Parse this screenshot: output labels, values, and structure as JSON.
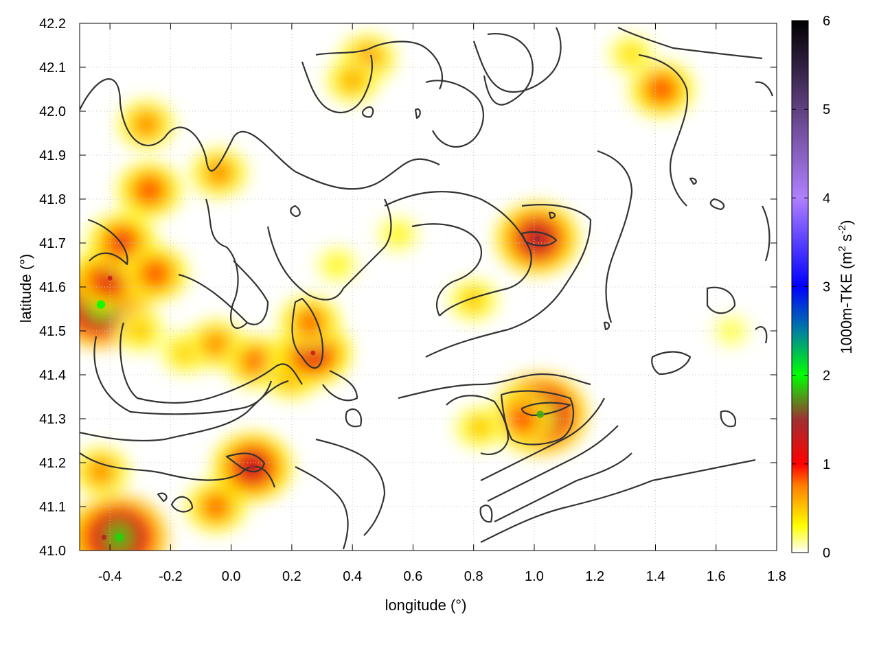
{
  "chart_data": {
    "type": "heatmap",
    "title": "",
    "xlabel": "longitude (°)",
    "ylabel": "latitude (°)",
    "xlim": [
      -0.5,
      1.8
    ],
    "ylim": [
      41.0,
      42.2
    ],
    "xticks": [
      "-0.4",
      "-0.2",
      "0.0",
      "0.2",
      "0.4",
      "0.6",
      "0.8",
      "1.0",
      "1.2",
      "1.4",
      "1.6",
      "1.8"
    ],
    "yticks": [
      "41.0",
      "41.1",
      "41.2",
      "41.3",
      "41.4",
      "41.5",
      "41.6",
      "41.7",
      "41.8",
      "41.9",
      "42.0",
      "42.1",
      "42.2"
    ],
    "grid": true,
    "colorbar": {
      "label": "1000m-TKE (m² s⁻²)",
      "label_main": "1000m-TKE (m",
      "label_sup1": "2",
      "label_mid": " s",
      "label_sup2": "-2",
      "label_end": ")",
      "range": [
        0,
        6
      ],
      "ticks": [
        "0",
        "1",
        "2",
        "3",
        "4",
        "5",
        "6"
      ],
      "stops": [
        {
          "value": 0.0,
          "color": "#ffffff"
        },
        {
          "value": 0.3,
          "color": "#ffff00"
        },
        {
          "value": 0.75,
          "color": "#ff8000"
        },
        {
          "value": 1.0,
          "color": "#ff0000"
        },
        {
          "value": 1.5,
          "color": "#a03030"
        },
        {
          "value": 2.0,
          "color": "#00ff00"
        },
        {
          "value": 2.5,
          "color": "#0080a0"
        },
        {
          "value": 3.0,
          "color": "#0000ff"
        },
        {
          "value": 4.0,
          "color": "#b080ff"
        },
        {
          "value": 5.0,
          "color": "#604080"
        },
        {
          "value": 6.0,
          "color": "#000000"
        }
      ]
    },
    "hotspots": [
      {
        "lon": -0.43,
        "lat": 41.56,
        "value": 2.0
      },
      {
        "lon": -0.4,
        "lat": 41.62,
        "value": 1.3
      },
      {
        "lon": -0.36,
        "lat": 41.7,
        "value": 1.1
      },
      {
        "lon": -0.3,
        "lat": 41.5,
        "value": 0.6
      },
      {
        "lon": -0.25,
        "lat": 41.63,
        "value": 1.0
      },
      {
        "lon": -0.15,
        "lat": 41.45,
        "value": 0.6
      },
      {
        "lon": -0.05,
        "lat": 41.47,
        "value": 0.8
      },
      {
        "lon": 0.08,
        "lat": 41.43,
        "value": 0.9
      },
      {
        "lon": 0.2,
        "lat": 41.4,
        "value": 0.8
      },
      {
        "lon": 0.27,
        "lat": 41.45,
        "value": 1.3
      },
      {
        "lon": 0.26,
        "lat": 41.52,
        "value": 0.9
      },
      {
        "lon": -0.27,
        "lat": 41.82,
        "value": 1.0
      },
      {
        "lon": -0.28,
        "lat": 41.97,
        "value": 0.8
      },
      {
        "lon": -0.04,
        "lat": 41.86,
        "value": 0.8
      },
      {
        "lon": -0.42,
        "lat": 41.03,
        "value": 1.4
      },
      {
        "lon": -0.37,
        "lat": 41.03,
        "value": 1.9
      },
      {
        "lon": -0.43,
        "lat": 41.18,
        "value": 0.8
      },
      {
        "lon": -0.05,
        "lat": 41.1,
        "value": 0.9
      },
      {
        "lon": 0.07,
        "lat": 41.19,
        "value": 1.4
      },
      {
        "lon": 0.45,
        "lat": 42.12,
        "value": 0.8
      },
      {
        "lon": 0.4,
        "lat": 42.07,
        "value": 0.7
      },
      {
        "lon": 1.01,
        "lat": 41.71,
        "value": 1.5
      },
      {
        "lon": 1.02,
        "lat": 41.31,
        "value": 1.8
      },
      {
        "lon": 0.96,
        "lat": 41.3,
        "value": 1.0
      },
      {
        "lon": 0.82,
        "lat": 41.28,
        "value": 0.6
      },
      {
        "lon": 1.42,
        "lat": 42.05,
        "value": 1.0
      },
      {
        "lon": 0.8,
        "lat": 41.57,
        "value": 0.6
      },
      {
        "lon": 0.35,
        "lat": 41.65,
        "value": 0.4
      },
      {
        "lon": 1.32,
        "lat": 42.13,
        "value": 0.5
      },
      {
        "lon": 0.55,
        "lat": 41.72,
        "value": 0.4
      },
      {
        "lon": 1.65,
        "lat": 41.5,
        "value": 0.3
      }
    ]
  }
}
